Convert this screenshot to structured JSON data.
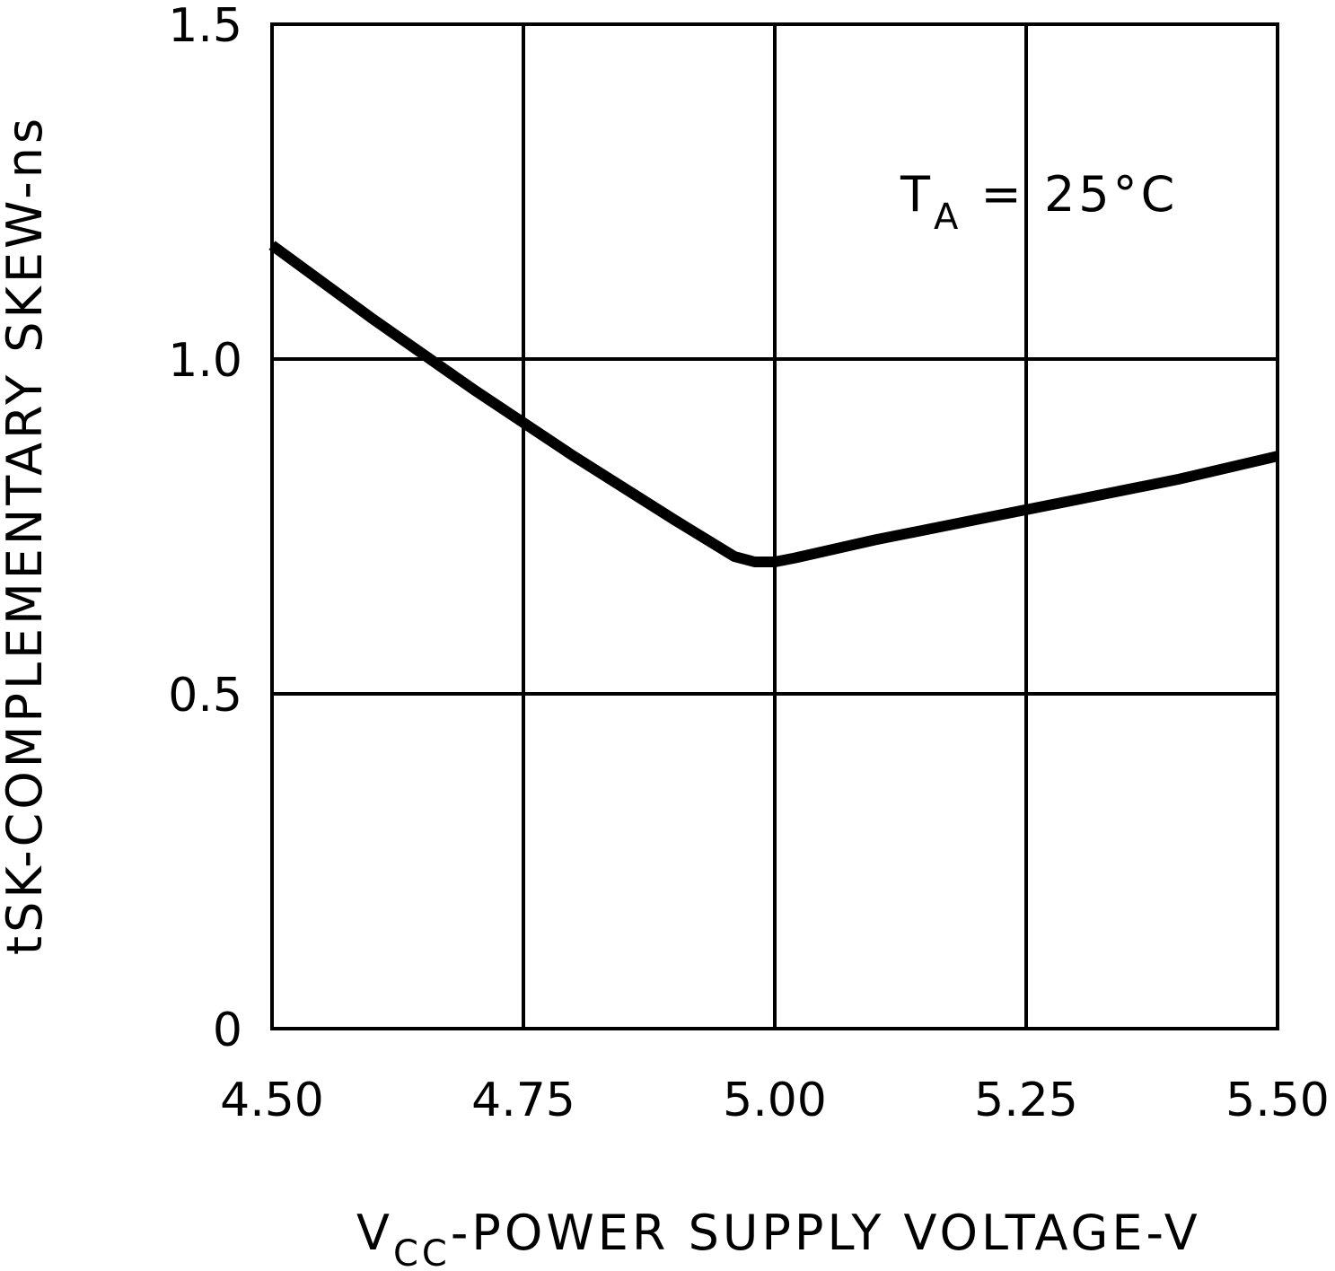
{
  "chart_data": {
    "type": "line",
    "title": "",
    "xlabel": {
      "main": "V",
      "sub": "CC",
      "rest": "-POWER SUPPLY VOLTAGE-V"
    },
    "ylabel": "tSK-COMPLEMENTARY SKEW-ns",
    "xlim": [
      4.5,
      5.5
    ],
    "ylim": [
      0,
      1.5
    ],
    "x_ticks": [
      4.5,
      4.75,
      5.0,
      5.25,
      5.5
    ],
    "x_tick_labels": [
      "4.50",
      "4.75",
      "5.00",
      "5.25",
      "5.50"
    ],
    "y_ticks": [
      0,
      0.5,
      1.0,
      1.5
    ],
    "y_tick_labels": [
      "0",
      "0.5",
      "1.0",
      "1.5"
    ],
    "grid": true,
    "annotation": {
      "main": "T",
      "sub": "A",
      "rest": " = 25°C"
    },
    "series": [
      {
        "name": "tSK",
        "color": "#000000",
        "x": [
          4.5,
          4.6,
          4.7,
          4.8,
          4.9,
          4.96,
          4.98,
          5.0,
          5.02,
          5.1,
          5.2,
          5.3,
          5.4,
          5.5
        ],
        "y": [
          1.17,
          1.06,
          0.955,
          0.855,
          0.76,
          0.705,
          0.697,
          0.697,
          0.703,
          0.73,
          0.76,
          0.79,
          0.82,
          0.855
        ]
      }
    ]
  }
}
